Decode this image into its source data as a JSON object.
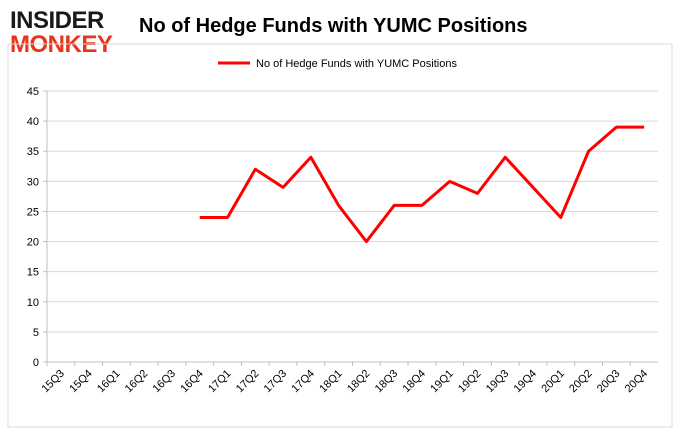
{
  "logo": {
    "line1": "INSIDER",
    "line2": "MONKEY",
    "color_dark": "#1a1a1a",
    "color_red": "#e8341c"
  },
  "chart_data": {
    "type": "line",
    "title": "No of Hedge Funds with YUMC Positions",
    "categories": [
      "15Q3",
      "15Q4",
      "16Q1",
      "16Q2",
      "16Q3",
      "16Q4",
      "17Q1",
      "17Q2",
      "17Q3",
      "17Q4",
      "18Q1",
      "18Q2",
      "18Q3",
      "18Q4",
      "19Q1",
      "19Q2",
      "19Q3",
      "19Q4",
      "20Q1",
      "20Q2",
      "20Q3",
      "20Q4"
    ],
    "series": [
      {
        "name": "No of Hedge Funds with YUMC  Positions",
        "color": "#ff0000",
        "values": [
          null,
          null,
          null,
          null,
          null,
          24,
          24,
          32,
          29,
          34,
          26,
          20,
          26,
          26,
          30,
          28,
          34,
          29,
          24,
          35,
          39,
          39
        ]
      }
    ],
    "yticks": [
      0,
      5,
      10,
      15,
      20,
      25,
      30,
      35,
      40,
      45
    ],
    "ylim": [
      0,
      45
    ],
    "grid": true,
    "legend_position": "top-center"
  }
}
